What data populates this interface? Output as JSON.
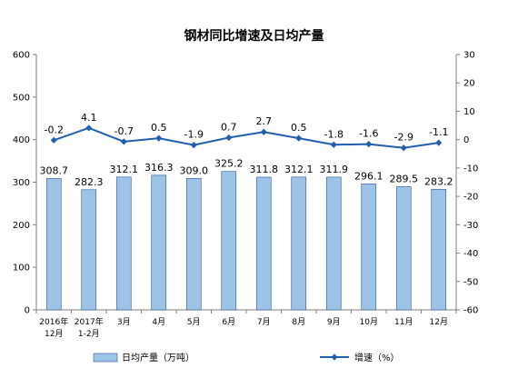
{
  "chart_data": {
    "type": "bar",
    "title": "钢材同比增速及日均产量",
    "categories": [
      [
        "2016年",
        "12月"
      ],
      [
        "2017年",
        "1-2月"
      ],
      [
        "3月"
      ],
      [
        "4月"
      ],
      [
        "5月"
      ],
      [
        "6月"
      ],
      [
        "7月"
      ],
      [
        "8月"
      ],
      [
        "9月"
      ],
      [
        "10月"
      ],
      [
        "11月"
      ],
      [
        "12月"
      ]
    ],
    "series": [
      {
        "name": "日均产量（万吨）",
        "type": "bar",
        "axis": "left",
        "color": "#9DC3E6",
        "values": [
          308.7,
          282.3,
          312.1,
          316.3,
          309.0,
          325.2,
          311.8,
          312.1,
          311.9,
          296.1,
          289.5,
          283.2
        ],
        "labels": [
          "308.7",
          "282.3",
          "312.1",
          "316.3",
          "309.0",
          "325.2",
          "311.8",
          "312.1",
          "311.9",
          "296.1",
          "289.5",
          "283.2"
        ]
      },
      {
        "name": "增速（%）",
        "type": "line",
        "axis": "right",
        "color": "#1F5FAD",
        "values": [
          -0.2,
          4.1,
          -0.7,
          0.5,
          -1.9,
          0.7,
          2.7,
          0.5,
          -1.8,
          -1.6,
          -2.9,
          -1.1
        ],
        "labels": [
          "-0.2",
          "4.1",
          "-0.7",
          "0.5",
          "-1.9",
          "0.7",
          "2.7",
          "0.5",
          "-1.8",
          "-1.6",
          "-2.9",
          "-1.1"
        ]
      }
    ],
    "left_axis": {
      "ylim": [
        0,
        600
      ],
      "ticks": [
        0,
        100,
        200,
        300,
        400,
        500,
        600
      ]
    },
    "right_axis": {
      "ylim": [
        -60,
        30
      ],
      "ticks": [
        -60,
        -50,
        -40,
        -30,
        -20,
        -10,
        0,
        10,
        20,
        30
      ]
    },
    "grid": false,
    "legend_position": "bottom"
  }
}
